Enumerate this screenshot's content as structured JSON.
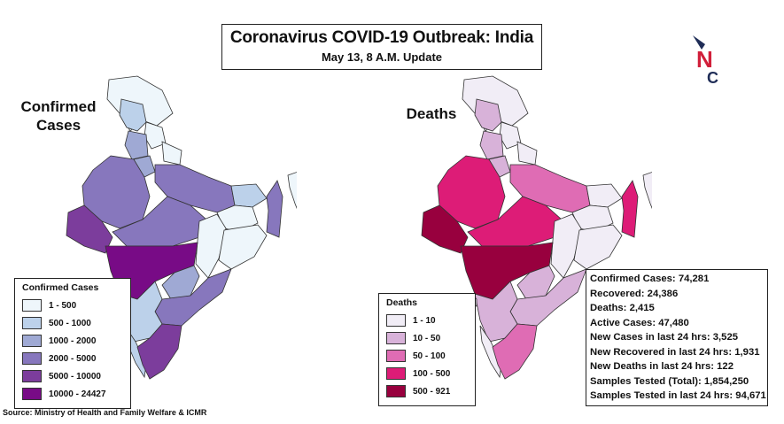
{
  "header": {
    "title": "Coronavirus COVID-19 Outbreak: India",
    "subtitle": "May 13, 8 A.M. Update"
  },
  "logo": {
    "name": "nc-logo-icon",
    "letters": "NC"
  },
  "confirmed_map": {
    "label_line1": "Confirmed",
    "label_line2": "Cases",
    "legend_title": "Confirmed Cases",
    "legend": [
      {
        "label": "1 - 500",
        "color": "#eef6fb"
      },
      {
        "label": "500 - 1000",
        "color": "#bcd1ea"
      },
      {
        "label": "1000 - 2000",
        "color": "#9fa9d4"
      },
      {
        "label": "2000 - 5000",
        "color": "#8777bd"
      },
      {
        "label": "5000 - 10000",
        "color": "#7c3d9c"
      },
      {
        "label": "10000 - 24427",
        "color": "#780b86"
      }
    ]
  },
  "deaths_map": {
    "label": "Deaths",
    "legend_title": "Deaths",
    "legend": [
      {
        "label": "1 - 10",
        "color": "#f1edf6"
      },
      {
        "label": "10 - 50",
        "color": "#d8b2d9"
      },
      {
        "label": "50 - 100",
        "color": "#df6cb4"
      },
      {
        "label": "100 - 500",
        "color": "#dd1c77"
      },
      {
        "label": "500 - 921",
        "color": "#98003e"
      }
    ]
  },
  "stats": [
    "Confirmed Cases: 74,281",
    "Recovered: 24,386",
    "Deaths: 2,415",
    "Active Cases:  47,480",
    "New Cases in last 24 hrs: 3,525",
    "New Recovered in last 24 hrs: 1,931",
    "New Deaths in last 24 hrs: 122",
    "Samples Tested (Total):  1,854,250",
    "Samples Tested in last 24 hrs: 94,671"
  ],
  "source": "Source: Ministry of Health and Family Welfare & ICMR"
}
